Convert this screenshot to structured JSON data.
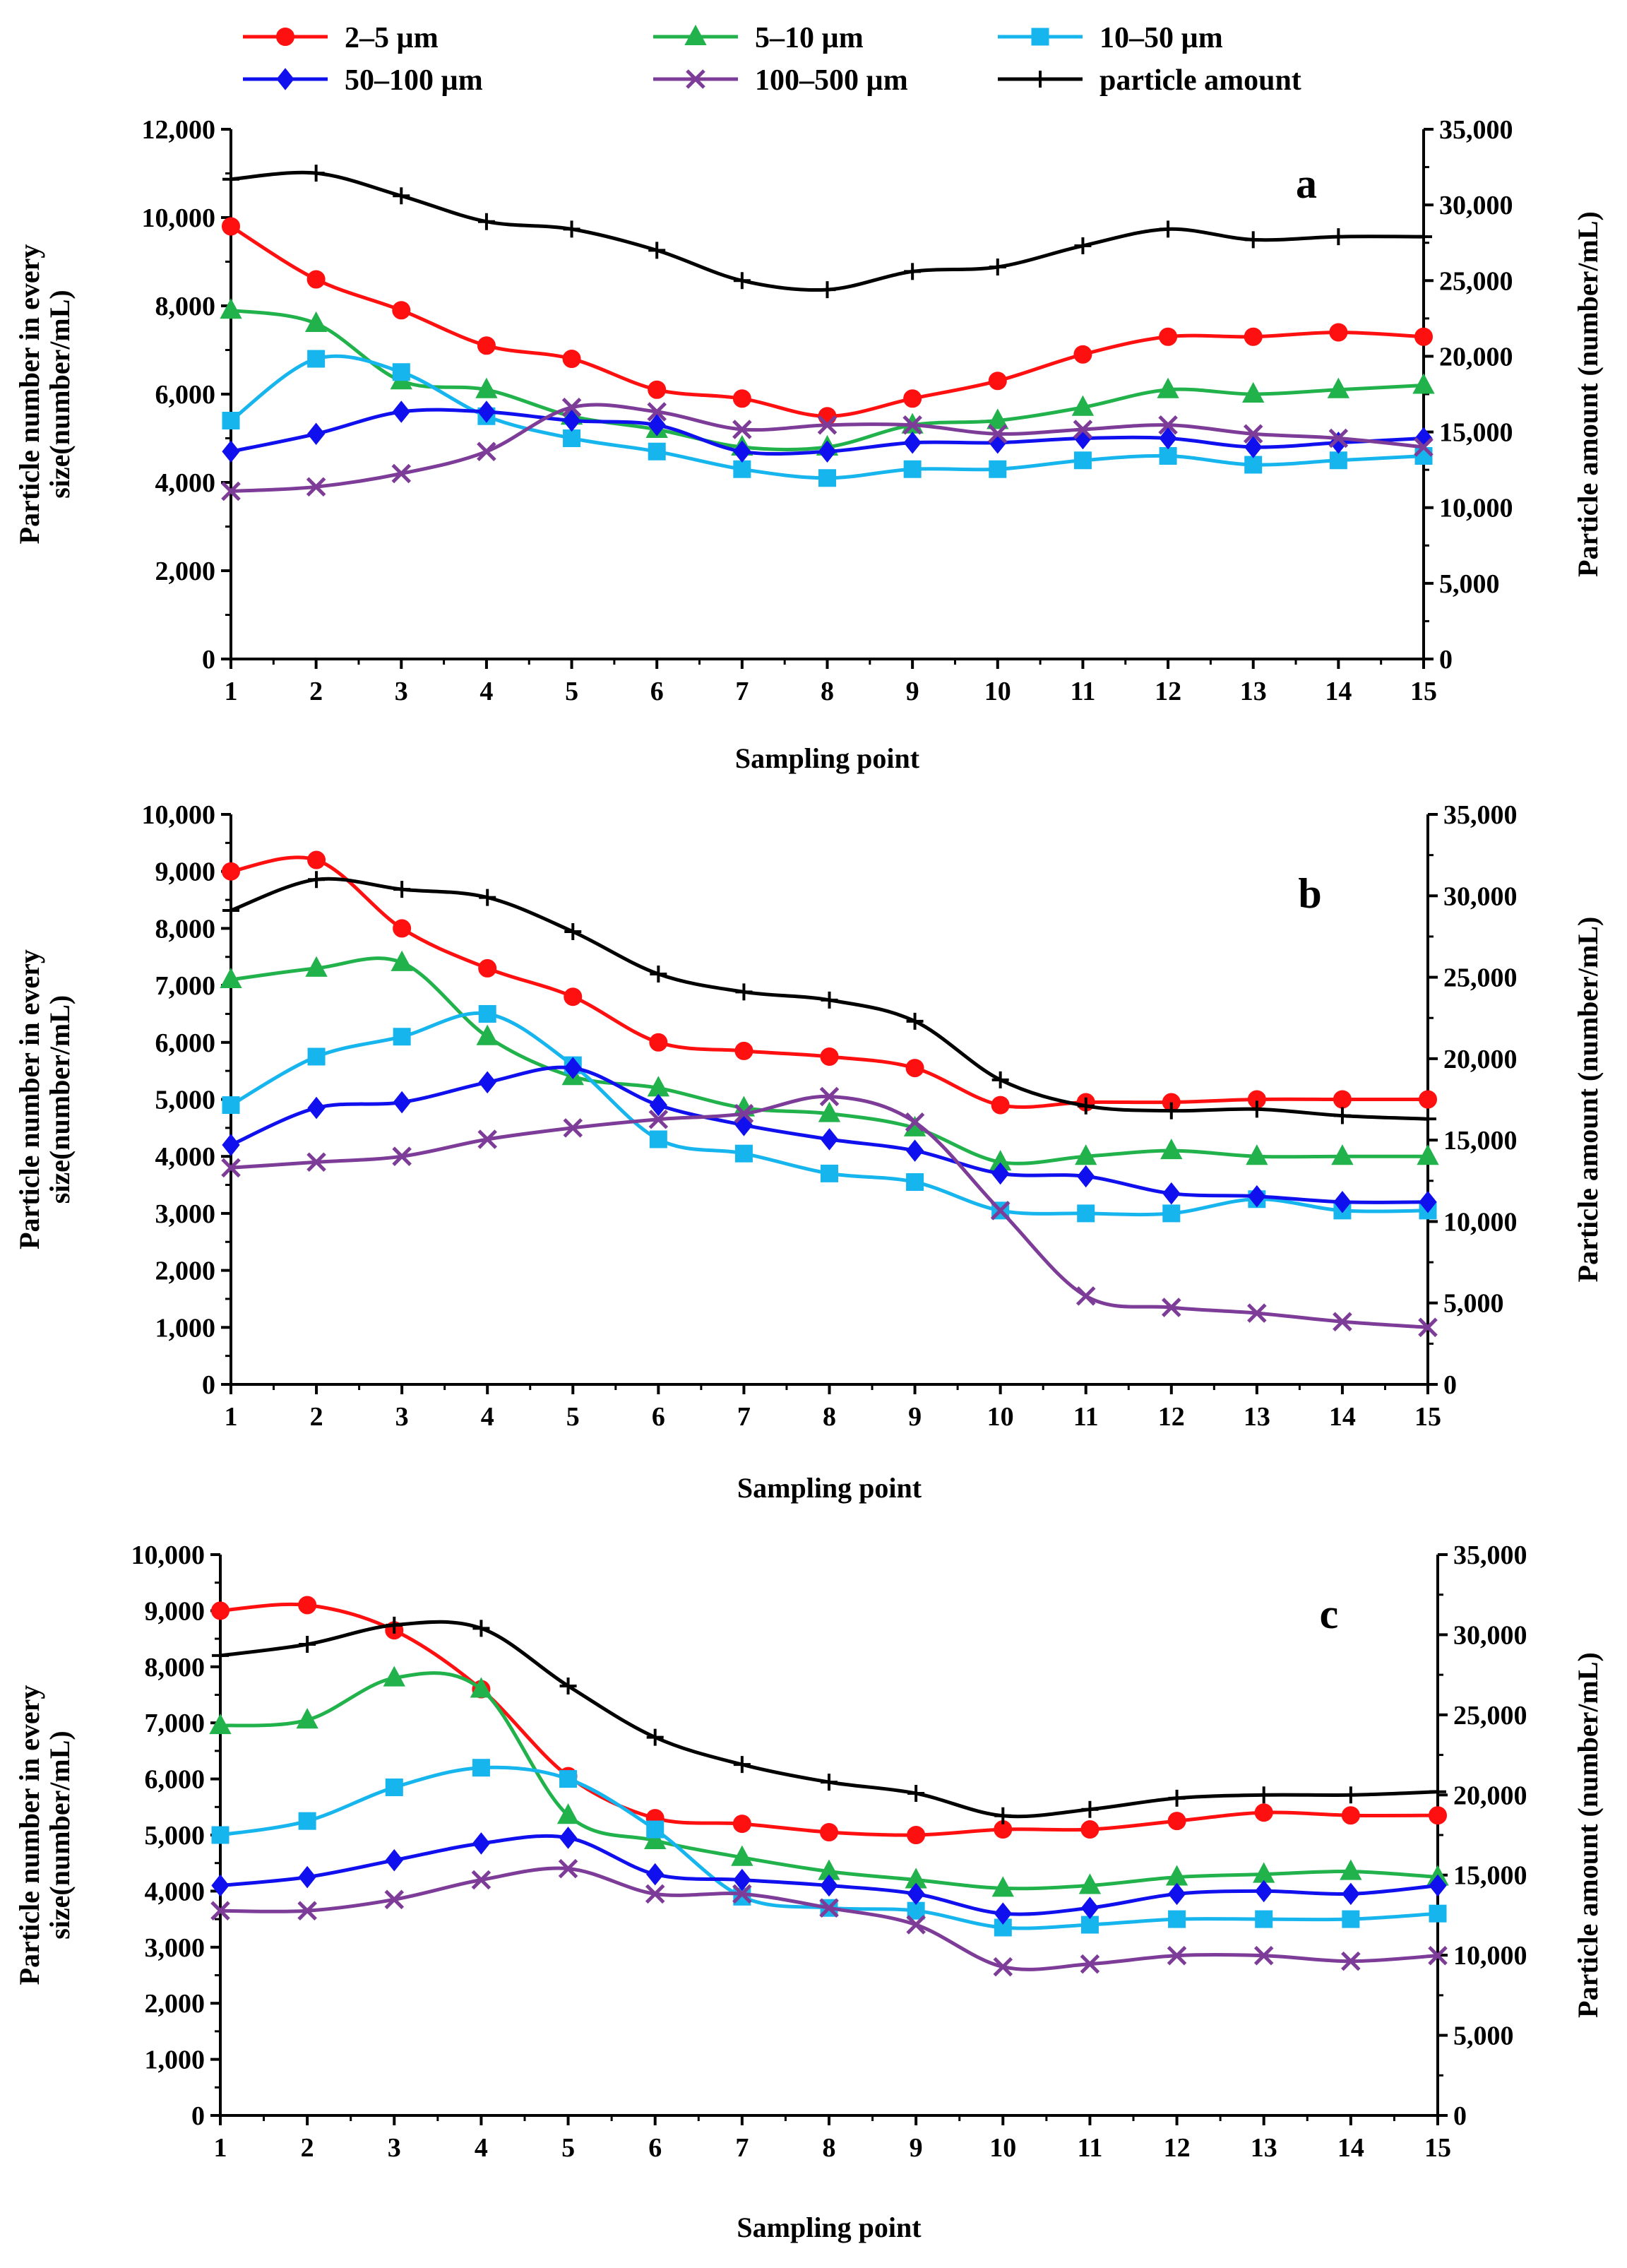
{
  "legend": [
    {
      "key": "s1",
      "label": "2–5 µm",
      "color": "#ff1010",
      "marker": "circle"
    },
    {
      "key": "s2",
      "label": "5–10 µm",
      "color": "#22b24c",
      "marker": "triangle"
    },
    {
      "key": "s3",
      "label": "10–50 µm",
      "color": "#17b5ee",
      "marker": "square"
    },
    {
      "key": "s4",
      "label": "50–100 µm",
      "color": "#1010ee",
      "marker": "diamond"
    },
    {
      "key": "s5",
      "label": "100–500 µm",
      "color": "#7d3c98",
      "marker": "x"
    },
    {
      "key": "s6",
      "label": "particle amount",
      "color": "#000000",
      "marker": "plus"
    }
  ],
  "chart_data": [
    {
      "panel": "a",
      "type": "line",
      "xlabel": "Sampling point",
      "ylabel_left": [
        "Particle number in every",
        "size(number/mL)"
      ],
      "ylabel_right": "Particle amount (number/mL)",
      "x": [
        1,
        2,
        3,
        4,
        5,
        6,
        7,
        8,
        9,
        10,
        11,
        12,
        13,
        14,
        15
      ],
      "ylim_left": [
        0,
        12000
      ],
      "yticks_left": [
        "0",
        "2,000",
        "4,000",
        "6,000",
        "8,000",
        "10,000",
        "12,000"
      ],
      "ylim_right": [
        0,
        35000
      ],
      "yticks_right": [
        "0",
        "5,000",
        "10,000",
        "15,000",
        "20,000",
        "25,000",
        "30,000",
        "35,000"
      ],
      "series": [
        {
          "key": "s1",
          "name": "2–5 µm",
          "axis": "left",
          "values": [
            9800,
            8600,
            7900,
            7100,
            6800,
            6100,
            5900,
            5500,
            5900,
            6300,
            6900,
            7300,
            7300,
            7400,
            7300
          ]
        },
        {
          "key": "s2",
          "name": "5–10 µm",
          "axis": "left",
          "values": [
            7900,
            7600,
            6300,
            6100,
            5500,
            5200,
            4800,
            4800,
            5300,
            5400,
            5700,
            6100,
            6000,
            6100,
            6200
          ]
        },
        {
          "key": "s3",
          "name": "10–50 µm",
          "axis": "left",
          "values": [
            5400,
            6800,
            6500,
            5500,
            5000,
            4700,
            4300,
            4100,
            4300,
            4300,
            4500,
            4600,
            4400,
            4500,
            4600
          ]
        },
        {
          "key": "s4",
          "name": "50–100 µm",
          "axis": "left",
          "values": [
            4700,
            5100,
            5600,
            5600,
            5400,
            5300,
            4700,
            4700,
            4900,
            4900,
            5000,
            5000,
            4800,
            4900,
            5000
          ]
        },
        {
          "key": "s5",
          "name": "100–500 µm",
          "axis": "left",
          "values": [
            3800,
            3900,
            4200,
            4700,
            5700,
            5600,
            5200,
            5300,
            5300,
            5100,
            5200,
            5300,
            5100,
            5000,
            4800
          ]
        },
        {
          "key": "s6",
          "name": "particle amount",
          "axis": "right",
          "values": [
            31700,
            32100,
            30600,
            28900,
            28400,
            27000,
            25000,
            24400,
            25600,
            25900,
            27300,
            28400,
            27700,
            27900,
            27900
          ]
        }
      ]
    },
    {
      "panel": "b",
      "type": "line",
      "xlabel": "Sampling point",
      "ylabel_left": [
        "Particle number in every",
        "size(number/mL)"
      ],
      "ylabel_right": "Particle amount (number/mL)",
      "x": [
        1,
        2,
        3,
        4,
        5,
        6,
        7,
        8,
        9,
        10,
        11,
        12,
        13,
        14,
        15
      ],
      "ylim_left": [
        0,
        10000
      ],
      "yticks_left": [
        "0",
        "1,000",
        "2,000",
        "3,000",
        "4,000",
        "5,000",
        "6,000",
        "7,000",
        "8,000",
        "9,000",
        "10,000"
      ],
      "ylim_right": [
        0,
        35000
      ],
      "yticks_right": [
        "0",
        "5,000",
        "10,000",
        "15,000",
        "20,000",
        "25,000",
        "30,000",
        "35,000"
      ],
      "series": [
        {
          "key": "s1",
          "name": "2–5 µm",
          "axis": "left",
          "values": [
            9000,
            9200,
            8000,
            7300,
            6800,
            6000,
            5850,
            5750,
            5550,
            4900,
            4950,
            4950,
            5000,
            5000,
            5000
          ]
        },
        {
          "key": "s2",
          "name": "5–10 µm",
          "axis": "left",
          "values": [
            7100,
            7300,
            7400,
            6100,
            5400,
            5200,
            4850,
            4750,
            4500,
            3900,
            4000,
            4100,
            4000,
            4000,
            4000
          ]
        },
        {
          "key": "s3",
          "name": "10–50 µm",
          "axis": "left",
          "values": [
            4900,
            5750,
            6100,
            6500,
            5600,
            4300,
            4050,
            3700,
            3550,
            3050,
            3000,
            3000,
            3250,
            3050,
            3050
          ]
        },
        {
          "key": "s4",
          "name": "50–100 µm",
          "axis": "left",
          "values": [
            4200,
            4850,
            4950,
            5300,
            5550,
            4900,
            4550,
            4300,
            4100,
            3700,
            3650,
            3350,
            3300,
            3200,
            3200
          ]
        },
        {
          "key": "s5",
          "name": "100–500 µm",
          "axis": "left",
          "values": [
            3800,
            3900,
            4000,
            4300,
            4500,
            4650,
            4750,
            5050,
            4600,
            3050,
            1550,
            1350,
            1250,
            1100,
            1000
          ]
        },
        {
          "key": "s6",
          "name": "particle amount",
          "axis": "right",
          "values": [
            29100,
            31000,
            30400,
            29900,
            27800,
            25200,
            24100,
            23600,
            22300,
            18700,
            17100,
            16800,
            16900,
            16500,
            16300
          ]
        }
      ]
    },
    {
      "panel": "c",
      "type": "line",
      "xlabel": "Sampling point",
      "ylabel_left": [
        "Particle number in every",
        "size(number/mL)"
      ],
      "ylabel_right": "Particle amount (number/mL)",
      "x": [
        1,
        2,
        3,
        4,
        5,
        6,
        7,
        8,
        9,
        10,
        11,
        12,
        13,
        14,
        15
      ],
      "ylim_left": [
        0,
        10000
      ],
      "yticks_left": [
        "0",
        "1,000",
        "2,000",
        "3,000",
        "4,000",
        "5,000",
        "6,000",
        "7,000",
        "8,000",
        "9,000",
        "10,000"
      ],
      "ylim_right": [
        0,
        35000
      ],
      "yticks_right": [
        "0",
        "5,000",
        "10,000",
        "15,000",
        "20,000",
        "25,000",
        "30,000",
        "35,000"
      ],
      "series": [
        {
          "key": "s1",
          "name": "2–5 µm",
          "axis": "left",
          "values": [
            9000,
            9100,
            8650,
            7600,
            6050,
            5300,
            5200,
            5050,
            5000,
            5100,
            5100,
            5250,
            5400,
            5350,
            5350
          ]
        },
        {
          "key": "s2",
          "name": "5–10 µm",
          "axis": "left",
          "values": [
            6950,
            7050,
            7800,
            7600,
            5350,
            4900,
            4600,
            4350,
            4200,
            4050,
            4100,
            4250,
            4300,
            4350,
            4250
          ]
        },
        {
          "key": "s3",
          "name": "10–50 µm",
          "axis": "left",
          "values": [
            5000,
            5250,
            5850,
            6200,
            6000,
            5100,
            3900,
            3700,
            3650,
            3350,
            3400,
            3500,
            3500,
            3500,
            3600
          ]
        },
        {
          "key": "s4",
          "name": "50–100 µm",
          "axis": "left",
          "values": [
            4100,
            4250,
            4550,
            4850,
            4950,
            4300,
            4200,
            4100,
            3950,
            3600,
            3700,
            3950,
            4000,
            3950,
            4100
          ]
        },
        {
          "key": "s5",
          "name": "100–500 µm",
          "axis": "left",
          "values": [
            3650,
            3650,
            3850,
            4200,
            4400,
            3950,
            3950,
            3700,
            3400,
            2650,
            2700,
            2850,
            2850,
            2750,
            2850
          ]
        },
        {
          "key": "s6",
          "name": "particle amount",
          "axis": "right",
          "values": [
            28700,
            29400,
            30600,
            30400,
            26800,
            23600,
            21900,
            20800,
            20100,
            18700,
            19100,
            19800,
            20000,
            20000,
            20200
          ]
        }
      ]
    }
  ]
}
